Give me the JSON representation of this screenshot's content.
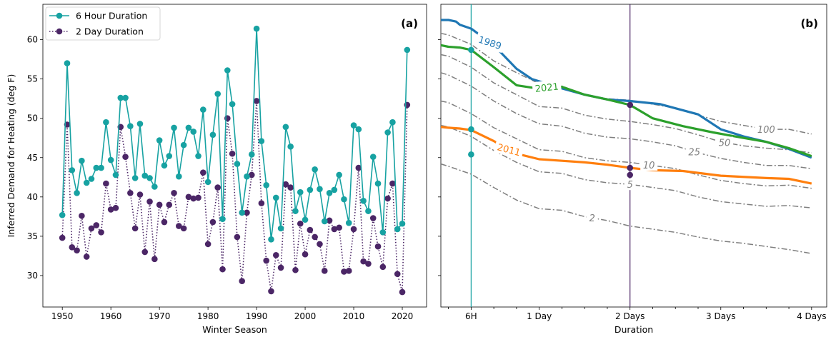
{
  "chart_data": [
    {
      "type": "line",
      "panel_label": "(a)",
      "xlabel": "Winter Season",
      "ylabel": "Inferred Demand for Heating (deg F)",
      "xlim": [
        1946,
        2025
      ],
      "ylim": [
        26,
        64.5
      ],
      "xticks": [
        1950,
        1960,
        1970,
        1980,
        1990,
        2000,
        2010,
        2020
      ],
      "yticks": [
        30,
        35,
        40,
        45,
        50,
        55,
        60
      ],
      "legend_position": "top-left",
      "colors": {
        "six_hour": "#17a2a2",
        "two_day": "#4b2666"
      },
      "x": [
        1950,
        1951,
        1952,
        1953,
        1954,
        1955,
        1956,
        1957,
        1958,
        1959,
        1960,
        1961,
        1962,
        1963,
        1964,
        1965,
        1966,
        1967,
        1968,
        1969,
        1970,
        1971,
        1972,
        1973,
        1974,
        1975,
        1976,
        1977,
        1978,
        1979,
        1980,
        1981,
        1982,
        1983,
        1984,
        1985,
        1986,
        1987,
        1988,
        1989,
        1990,
        1991,
        1992,
        1993,
        1994,
        1995,
        1996,
        1997,
        1998,
        1999,
        2000,
        2001,
        2002,
        2003,
        2004,
        2005,
        2006,
        2007,
        2008,
        2009,
        2010,
        2011,
        2012,
        2013,
        2014,
        2015,
        2016,
        2017,
        2018,
        2019,
        2020,
        2021
      ],
      "series": [
        {
          "name": "6 Hour Duration",
          "style": "solid",
          "values": [
            37.7,
            57.0,
            43.4,
            40.5,
            44.6,
            41.8,
            42.3,
            43.7,
            43.7,
            49.5,
            44.7,
            42.8,
            52.6,
            52.6,
            49.0,
            42.4,
            49.3,
            42.7,
            42.4,
            41.3,
            47.2,
            44.0,
            45.2,
            48.8,
            42.6,
            46.6,
            48.8,
            48.3,
            45.2,
            51.1,
            41.9,
            47.9,
            53.1,
            37.2,
            56.1,
            51.8,
            44.2,
            38.0,
            42.6,
            45.4,
            61.4,
            47.1,
            41.5,
            34.6,
            39.9,
            36.0,
            48.9,
            46.4,
            38.2,
            40.6,
            37.1,
            40.9,
            43.5,
            41.0,
            36.9,
            40.5,
            40.9,
            42.8,
            39.7,
            36.7,
            49.1,
            48.6,
            39.5,
            38.2,
            45.1,
            41.7,
            35.5,
            48.2,
            49.5,
            35.9,
            36.6,
            58.7
          ]
        },
        {
          "name": "2 Day Duration",
          "style": "dotted",
          "values": [
            34.8,
            49.2,
            33.6,
            33.2,
            37.6,
            32.4,
            36.0,
            36.4,
            35.5,
            41.7,
            38.4,
            38.6,
            48.9,
            45.1,
            40.5,
            36.0,
            40.3,
            33.0,
            39.4,
            32.1,
            39.0,
            36.8,
            39.0,
            40.5,
            36.3,
            36.0,
            40.0,
            39.8,
            39.9,
            43.1,
            34.0,
            36.8,
            41.2,
            30.8,
            50.0,
            45.5,
            34.9,
            29.3,
            38.0,
            42.8,
            52.2,
            39.2,
            31.9,
            28.0,
            32.6,
            31.0,
            41.6,
            41.2,
            30.7,
            36.6,
            32.7,
            35.8,
            34.9,
            34.0,
            30.6,
            37.0,
            35.9,
            36.1,
            30.5,
            30.6,
            35.9,
            43.7,
            31.8,
            31.5,
            37.3,
            33.7,
            31.1,
            39.8,
            41.7,
            30.2,
            27.9,
            51.7
          ]
        }
      ]
    },
    {
      "type": "line",
      "panel_label": "(b)",
      "xlabel": "Duration",
      "xtick_labels": [
        "6H",
        "1 Day",
        "2 Days",
        "3 Days",
        "4 Days"
      ],
      "xtick_values_hours": [
        6,
        24,
        48,
        72,
        96
      ],
      "xlim_hours": [
        -2,
        100
      ],
      "ylim": [
        26,
        64.5
      ],
      "vertical_lines_hours": [
        {
          "x": 6,
          "color": "#17a2a2"
        },
        {
          "x": 48,
          "color": "#4b2666"
        }
      ],
      "year_series": [
        {
          "name": "1989",
          "color": "#1f77b4",
          "points": [
            [
              -2,
              62.5
            ],
            [
              0,
              62.5
            ],
            [
              1,
              62.4
            ],
            [
              2,
              62.3
            ],
            [
              3,
              61.9
            ],
            [
              6,
              61.4
            ],
            [
              12,
              59.3
            ],
            [
              18,
              56.3
            ],
            [
              22,
              55.0
            ],
            [
              30,
              53.8
            ],
            [
              36,
              53.0
            ],
            [
              42,
              52.4
            ],
            [
              48,
              52.2
            ],
            [
              56,
              51.8
            ],
            [
              66,
              50.5
            ],
            [
              72,
              48.6
            ],
            [
              78,
              47.7
            ],
            [
              84,
              47.0
            ],
            [
              90,
              46.1
            ],
            [
              96,
              45.0
            ]
          ]
        },
        {
          "name": "2021",
          "color": "#2ca02c",
          "points": [
            [
              -2,
              59.3
            ],
            [
              0,
              59.1
            ],
            [
              3,
              59.0
            ],
            [
              6,
              58.7
            ],
            [
              12,
              56.5
            ],
            [
              18,
              54.2
            ],
            [
              22,
              53.9
            ],
            [
              30,
              54.0
            ],
            [
              36,
              53.0
            ],
            [
              42,
              52.4
            ],
            [
              48,
              51.7
            ],
            [
              54,
              50.0
            ],
            [
              62,
              49.0
            ],
            [
              70,
              48.2
            ],
            [
              78,
              47.5
            ],
            [
              84,
              47.0
            ],
            [
              90,
              46.2
            ],
            [
              96,
              45.2
            ]
          ]
        },
        {
          "name": "2011",
          "color": "#ff7f0e",
          "points": [
            [
              -2,
              48.9
            ],
            [
              0,
              48.8
            ],
            [
              3,
              48.7
            ],
            [
              6,
              48.5
            ],
            [
              12,
              47.1
            ],
            [
              18,
              45.5
            ],
            [
              24,
              44.8
            ],
            [
              30,
              44.6
            ],
            [
              36,
              44.4
            ],
            [
              42,
              44.1
            ],
            [
              48,
              43.7
            ],
            [
              54,
              43.4
            ],
            [
              62,
              43.3
            ],
            [
              72,
              42.7
            ],
            [
              84,
              42.4
            ],
            [
              90,
              42.3
            ],
            [
              96,
              41.7
            ]
          ]
        }
      ],
      "contour_series": [
        {
          "name": "100",
          "points": [
            [
              -2,
              60.8
            ],
            [
              0,
              60.6
            ],
            [
              6,
              59.4
            ],
            [
              12,
              57.3
            ],
            [
              18,
              55.8
            ],
            [
              24,
              54.4
            ],
            [
              30,
              54.1
            ],
            [
              36,
              53.0
            ],
            [
              42,
              52.5
            ],
            [
              48,
              52.3
            ],
            [
              54,
              51.8
            ],
            [
              60,
              51.3
            ],
            [
              66,
              50.4
            ],
            [
              72,
              49.6
            ],
            [
              78,
              49.1
            ],
            [
              84,
              48.6
            ],
            [
              90,
              48.6
            ],
            [
              96,
              48.0
            ]
          ]
        },
        {
          "name": "50",
          "points": [
            [
              -2,
              58.1
            ],
            [
              0,
              57.9
            ],
            [
              6,
              56.5
            ],
            [
              12,
              54.5
            ],
            [
              18,
              53.0
            ],
            [
              24,
              51.5
            ],
            [
              30,
              51.3
            ],
            [
              36,
              50.4
            ],
            [
              42,
              49.9
            ],
            [
              48,
              49.6
            ],
            [
              54,
              49.2
            ],
            [
              60,
              48.7
            ],
            [
              66,
              47.9
            ],
            [
              72,
              47.0
            ],
            [
              78,
              46.5
            ],
            [
              84,
              46.2
            ],
            [
              90,
              46.0
            ],
            [
              96,
              45.6
            ]
          ]
        },
        {
          "name": "25",
          "points": [
            [
              -2,
              55.8
            ],
            [
              0,
              55.5
            ],
            [
              6,
              54.1
            ],
            [
              12,
              52.2
            ],
            [
              18,
              50.6
            ],
            [
              24,
              49.3
            ],
            [
              30,
              49.0
            ],
            [
              36,
              48.1
            ],
            [
              42,
              47.6
            ],
            [
              48,
              47.4
            ],
            [
              54,
              47.0
            ],
            [
              60,
              46.5
            ],
            [
              66,
              45.6
            ],
            [
              72,
              44.9
            ],
            [
              78,
              44.4
            ],
            [
              84,
              44.0
            ],
            [
              90,
              44.0
            ],
            [
              96,
              43.6
            ]
          ]
        },
        {
          "name": "10",
          "points": [
            [
              -2,
              52.2
            ],
            [
              0,
              52.0
            ],
            [
              6,
              50.6
            ],
            [
              12,
              48.8
            ],
            [
              18,
              47.4
            ],
            [
              24,
              46.0
            ],
            [
              30,
              45.8
            ],
            [
              36,
              45.0
            ],
            [
              42,
              44.6
            ],
            [
              48,
              44.4
            ],
            [
              54,
              44.0
            ],
            [
              60,
              43.6
            ],
            [
              66,
              42.8
            ],
            [
              72,
              42.1
            ],
            [
              78,
              41.7
            ],
            [
              84,
              41.4
            ],
            [
              90,
              41.5
            ],
            [
              96,
              41.1
            ]
          ]
        },
        {
          "name": "5",
          "points": [
            [
              -2,
              49.1
            ],
            [
              0,
              48.9
            ],
            [
              6,
              47.7
            ],
            [
              12,
              45.9
            ],
            [
              18,
              44.4
            ],
            [
              24,
              43.2
            ],
            [
              30,
              43.0
            ],
            [
              36,
              42.2
            ],
            [
              42,
              41.8
            ],
            [
              48,
              41.6
            ],
            [
              54,
              41.2
            ],
            [
              60,
              40.8
            ],
            [
              66,
              40.0
            ],
            [
              72,
              39.4
            ],
            [
              78,
              39.1
            ],
            [
              84,
              38.8
            ],
            [
              90,
              38.9
            ],
            [
              96,
              38.6
            ]
          ]
        },
        {
          "name": "2",
          "points": [
            [
              -2,
              44.2
            ],
            [
              0,
              43.9
            ],
            [
              6,
              42.9
            ],
            [
              12,
              41.2
            ],
            [
              18,
              39.6
            ],
            [
              24,
              38.5
            ],
            [
              30,
              38.3
            ],
            [
              36,
              37.5
            ],
            [
              42,
              37.0
            ],
            [
              48,
              36.3
            ],
            [
              54,
              35.9
            ],
            [
              60,
              35.5
            ],
            [
              66,
              34.9
            ],
            [
              72,
              34.4
            ],
            [
              78,
              34.1
            ],
            [
              84,
              33.7
            ],
            [
              90,
              33.3
            ],
            [
              96,
              32.8
            ]
          ]
        }
      ]
    }
  ]
}
